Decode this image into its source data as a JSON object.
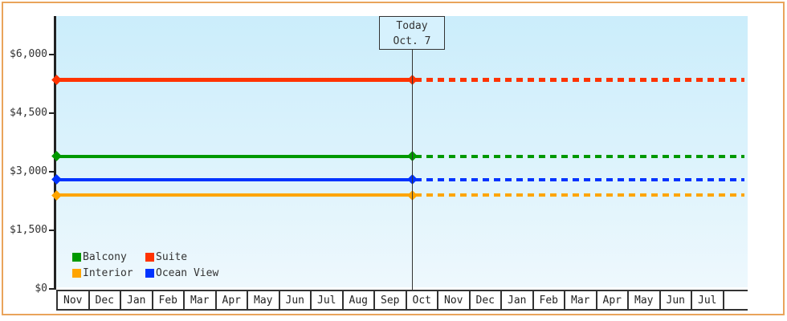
{
  "page": {
    "border_color": "#e9a45b",
    "background": "#ffffff"
  },
  "today_box": {
    "line1": "Today",
    "line2": "Oct. 7"
  },
  "chart_data": {
    "type": "line",
    "title": "",
    "xlabel": "",
    "ylabel": "",
    "x_months": [
      "Nov",
      "Dec",
      "Jan",
      "Feb",
      "Mar",
      "Apr",
      "May",
      "Jun",
      "Jul",
      "Aug",
      "Sep",
      "Oct",
      "Nov",
      "Dec",
      "Jan",
      "Feb",
      "Mar",
      "Apr",
      "May",
      "Jun",
      "Jul"
    ],
    "y_tick_labels": [
      "$0",
      "$1,500",
      "$3,000",
      "$4,500",
      "$6,000"
    ],
    "y_tick_values": [
      0,
      1500,
      3000,
      4500,
      6000
    ],
    "ylim": [
      0,
      7000
    ],
    "grid": false,
    "plot_background_top": "#cbedfb",
    "plot_background_bottom": "#eef8fd",
    "series": [
      {
        "name": "Suite",
        "color": "#ff3300",
        "value": 5350,
        "thickness": 5
      },
      {
        "name": "Balcony",
        "color": "#009900",
        "value": 3400,
        "thickness": 4
      },
      {
        "name": "Ocean View",
        "color": "#0033ff",
        "value": 2800,
        "thickness": 4
      },
      {
        "name": "Interior",
        "color": "#ffa500",
        "value": 2400,
        "thickness": 4
      }
    ],
    "today": {
      "month_index": 11,
      "day_fraction": 0.226,
      "annotation": "Today Oct. 7"
    },
    "line_style": {
      "before_today": "solid",
      "after_today": "dashed",
      "marker": "diamond"
    },
    "legend": {
      "position": "bottom-left",
      "entries": [
        {
          "label": "Balcony",
          "color": "#009900"
        },
        {
          "label": "Suite",
          "color": "#ff3300"
        },
        {
          "label": "Interior",
          "color": "#ffa500"
        },
        {
          "label": "Ocean View",
          "color": "#0033ff"
        }
      ]
    }
  }
}
